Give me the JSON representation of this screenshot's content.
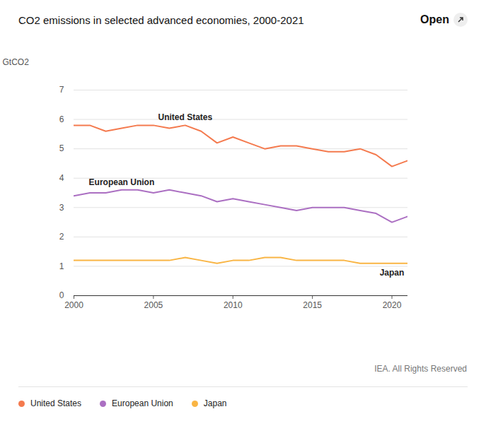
{
  "chart_data": {
    "type": "line",
    "title": "CO2 emissions in selected advanced economies, 2000-2021",
    "button": "Open",
    "ylabel": "GtCO2",
    "caption": "IEA. All Rights Reserved",
    "x": [
      2000,
      2001,
      2002,
      2003,
      2004,
      2005,
      2006,
      2007,
      2008,
      2009,
      2010,
      2011,
      2012,
      2013,
      2014,
      2015,
      2016,
      2017,
      2018,
      2019,
      2020,
      2021
    ],
    "xlim": [
      2000,
      2021
    ],
    "xticks": [
      2000,
      2005,
      2010,
      2015,
      2020
    ],
    "ylim": [
      0,
      7
    ],
    "yticks": [
      0,
      1,
      2,
      3,
      4,
      5,
      6,
      7
    ],
    "grid": true,
    "legend": "bottom",
    "series": [
      {
        "name": "United States",
        "color": "#f47a4e",
        "values": [
          5.8,
          5.8,
          5.6,
          5.7,
          5.8,
          5.8,
          5.7,
          5.8,
          5.6,
          5.2,
          5.4,
          5.2,
          5.0,
          5.1,
          5.1,
          5.0,
          4.9,
          4.9,
          5.0,
          4.8,
          4.4,
          4.6
        ]
      },
      {
        "name": "European Union",
        "color": "#ab6fc2",
        "values": [
          3.4,
          3.5,
          3.5,
          3.6,
          3.6,
          3.5,
          3.6,
          3.5,
          3.4,
          3.2,
          3.3,
          3.2,
          3.1,
          3.0,
          2.9,
          3.0,
          3.0,
          3.0,
          2.9,
          2.8,
          2.5,
          2.7
        ]
      },
      {
        "name": "Japan",
        "color": "#f9b544",
        "values": [
          1.2,
          1.2,
          1.2,
          1.2,
          1.2,
          1.2,
          1.2,
          1.3,
          1.2,
          1.1,
          1.2,
          1.2,
          1.3,
          1.3,
          1.2,
          1.2,
          1.2,
          1.2,
          1.1,
          1.1,
          1.1,
          1.1
        ]
      }
    ],
    "annotations": [
      {
        "text": "United States",
        "series": "United States"
      },
      {
        "text": "European Union",
        "series": "European Union"
      },
      {
        "text": "Japan",
        "series": "Japan"
      }
    ]
  }
}
